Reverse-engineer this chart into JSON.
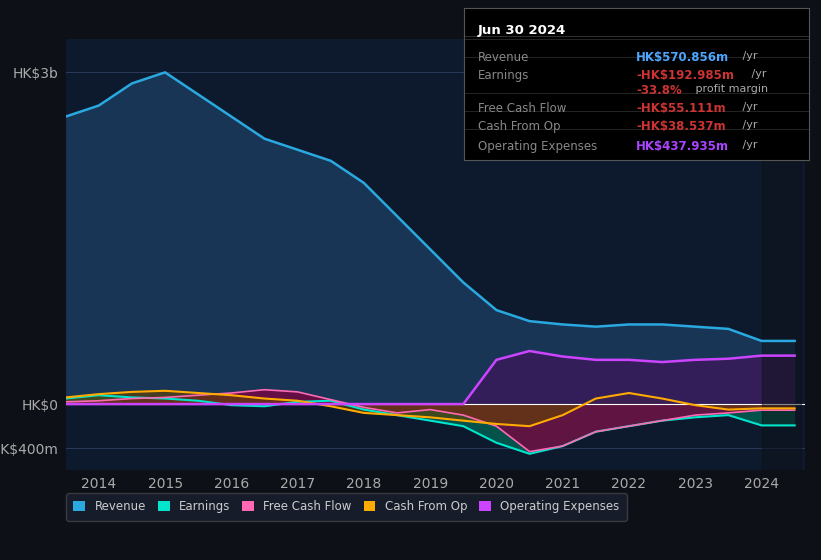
{
  "bg_color": "#0d1117",
  "plot_bg_color": "#0d1a2e",
  "grid_color": "#2a3a5a",
  "title_box": {
    "date": "Jun 30 2024",
    "rows": [
      {
        "label": "Revenue",
        "value": "HK$570.856m",
        "value_color": "#4da6ff",
        "suffix": " /yr"
      },
      {
        "label": "Earnings",
        "value": "-HK$192.985m",
        "value_color": "#cc3333",
        "suffix": " /yr"
      },
      {
        "label": "",
        "value": "-33.8%",
        "value_color": "#cc3333",
        "suffix": " profit margin"
      },
      {
        "label": "Free Cash Flow",
        "value": "-HK$55.111m",
        "value_color": "#cc3333",
        "suffix": " /yr"
      },
      {
        "label": "Cash From Op",
        "value": "-HK$38.537m",
        "value_color": "#cc3333",
        "suffix": " /yr"
      },
      {
        "label": "Operating Expenses",
        "value": "HK$437.935m",
        "value_color": "#aa44ff",
        "suffix": " /yr"
      }
    ]
  },
  "years": [
    2013.5,
    2014,
    2014.5,
    2015,
    2015.5,
    2016,
    2016.5,
    2017,
    2017.5,
    2018,
    2018.5,
    2019,
    2019.5,
    2020,
    2020.5,
    2021,
    2021.5,
    2022,
    2022.5,
    2023,
    2023.5,
    2024,
    2024.5
  ],
  "revenue": [
    2600,
    2700,
    2900,
    3000,
    2800,
    2600,
    2400,
    2300,
    2200,
    2000,
    1700,
    1400,
    1100,
    850,
    750,
    720,
    700,
    720,
    720,
    700,
    680,
    571,
    571
  ],
  "earnings": [
    50,
    80,
    60,
    50,
    30,
    -10,
    -20,
    20,
    30,
    -50,
    -100,
    -150,
    -200,
    -350,
    -450,
    -380,
    -250,
    -200,
    -150,
    -120,
    -100,
    -193,
    -193
  ],
  "fcf": [
    20,
    30,
    50,
    60,
    80,
    100,
    130,
    110,
    40,
    -30,
    -80,
    -50,
    -100,
    -200,
    -430,
    -380,
    -250,
    -200,
    -150,
    -100,
    -80,
    -55,
    -55
  ],
  "cashfromop": [
    60,
    90,
    110,
    120,
    100,
    80,
    50,
    30,
    -20,
    -80,
    -100,
    -120,
    -150,
    -180,
    -200,
    -100,
    50,
    100,
    50,
    -10,
    -50,
    -39,
    -39
  ],
  "opex": [
    0,
    0,
    0,
    0,
    0,
    0,
    0,
    0,
    0,
    0,
    0,
    0,
    0,
    400,
    480,
    430,
    400,
    400,
    380,
    400,
    410,
    438,
    438
  ],
  "xticks": [
    2014,
    2015,
    2016,
    2017,
    2018,
    2019,
    2020,
    2021,
    2022,
    2023,
    2024
  ],
  "yticks_labels": [
    "HK$3b",
    "HK$0",
    "-HK$400m"
  ],
  "yticks_values": [
    3000,
    0,
    -400
  ],
  "ylim": [
    -600,
    3300
  ],
  "revenue_color": "#29a9e0",
  "revenue_fill": "#1a3a5c",
  "earnings_color": "#00e5cc",
  "earnings_fill": "#006655",
  "fcf_color": "#ff69b4",
  "fcf_fill": "#800040",
  "cashfromop_color": "#ffaa00",
  "cashfromop_fill": "#664400",
  "opex_color": "#cc44ff",
  "opex_fill": "#3a1a5a",
  "legend_items": [
    {
      "label": "Revenue",
      "color": "#29a9e0"
    },
    {
      "label": "Earnings",
      "color": "#00e5cc"
    },
    {
      "label": "Free Cash Flow",
      "color": "#ff69b4"
    },
    {
      "label": "Cash From Op",
      "color": "#ffaa00"
    },
    {
      "label": "Operating Expenses",
      "color": "#cc44ff"
    }
  ]
}
